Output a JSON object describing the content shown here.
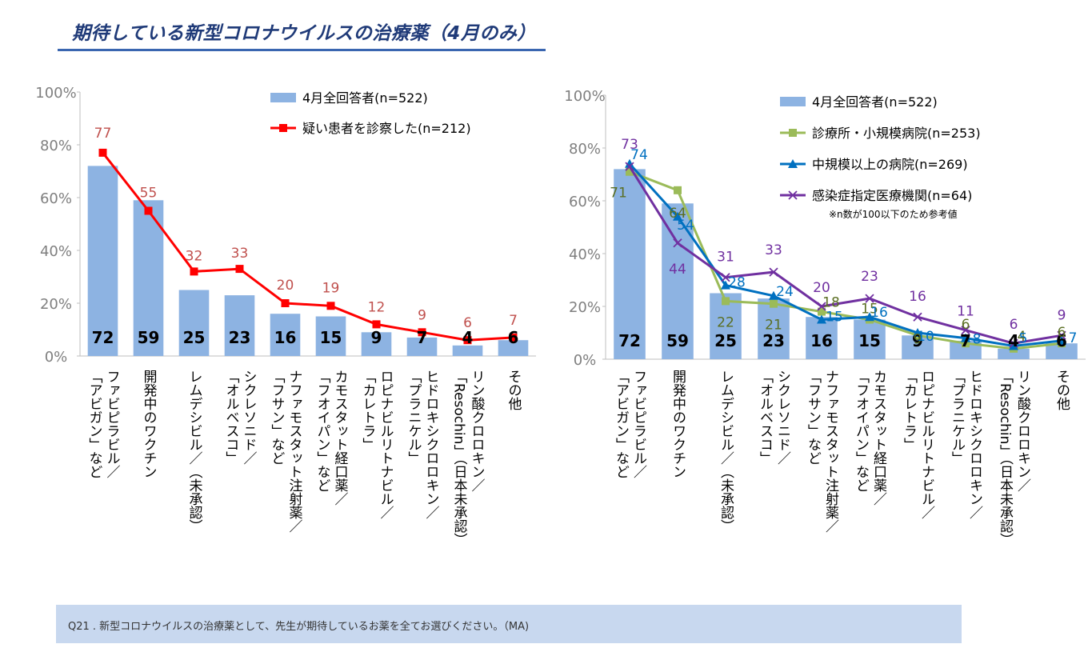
{
  "page": {
    "title": "期待している新型コロナウイルスの治療薬（4月のみ）",
    "question": "Q21 . 新型コロナウイルスの治療薬として、先生が期待しているお薬を全てお選びください。（MA)"
  },
  "chart_data": [
    {
      "type": "bar",
      "y_ticks": [
        "100%",
        "80%",
        "60%",
        "40%",
        "20%",
        "0%"
      ],
      "ylim": [
        0,
        100
      ],
      "categories": [
        [
          "ファビピラビル／",
          "「アビガン」など"
        ],
        [
          "開発中のワクチン"
        ],
        [
          "レムデシビル／（未承認）"
        ],
        [
          "シクレソニド／",
          "「オルベスコ」"
        ],
        [
          "ナファモスタット注射薬／",
          "「フサン」など"
        ],
        [
          "カモスタット経口薬／",
          "「フオイパン」など"
        ],
        [
          "ロピナビルリトナビル／",
          "「カレトラ」"
        ],
        [
          "ヒドロキシクロロキン／",
          "「プラニケル」"
        ],
        [
          "リン酸クロロキン／",
          "「Resochin」（日本未承認）"
        ],
        [
          "その他"
        ]
      ],
      "legend_position": "top-right",
      "series": [
        {
          "name": "4月全回答者(n=522)",
          "kind": "bar",
          "color": "#8db3e2",
          "values": [
            72,
            59,
            25,
            23,
            16,
            15,
            9,
            7,
            4,
            6
          ],
          "label_color": "#000000"
        },
        {
          "name": "疑い患者を診察した(n=212)",
          "kind": "line",
          "marker": "square",
          "color": "#ff0000",
          "values": [
            77,
            55,
            32,
            33,
            20,
            19,
            12,
            9,
            6,
            7
          ],
          "label_color": "#c0504d"
        }
      ]
    },
    {
      "type": "bar",
      "y_ticks": [
        "100%",
        "80%",
        "60%",
        "40%",
        "20%",
        "0%"
      ],
      "ylim": [
        0,
        100
      ],
      "categories": [
        [
          "ファビピラビル／",
          "「アビガン」など"
        ],
        [
          "開発中のワクチン"
        ],
        [
          "レムデシビル／（未承認）"
        ],
        [
          "シクレソニド／",
          "「オルベスコ」"
        ],
        [
          "ナファモスタット注射薬／",
          "「フサン」など"
        ],
        [
          "カモスタット経口薬／",
          "「フオイパン」など"
        ],
        [
          "ロピナビルリトナビル／",
          "「カレトラ」"
        ],
        [
          "ヒドロキシクロロキン／",
          "「プラニケル」"
        ],
        [
          "リン酸クロロキン／",
          "「Resochin」（日本未承認）"
        ],
        [
          "その他"
        ]
      ],
      "legend_position": "top-right",
      "note": "※n数が100以下のため参考値",
      "series": [
        {
          "name": "4月全回答者(n=522)",
          "kind": "bar",
          "color": "#8db3e2",
          "values": [
            72,
            59,
            25,
            23,
            16,
            15,
            9,
            7,
            4,
            6
          ],
          "label_color": "#000000"
        },
        {
          "name": "診療所・小規模病院(n=253)",
          "kind": "line",
          "marker": "square",
          "color": "#9bbb59",
          "values": [
            71,
            64,
            22,
            21,
            18,
            15,
            9,
            6,
            4,
            6
          ],
          "label_color": "#5a6e22"
        },
        {
          "name": "中規模以上の病院(n=269)",
          "kind": "line",
          "marker": "triangle",
          "color": "#0070c0",
          "values": [
            74,
            54,
            28,
            24,
            15,
            16,
            10,
            8,
            5,
            7
          ],
          "label_color": "#0070c0"
        },
        {
          "name": "感染症指定医療機関(n=64)",
          "kind": "line",
          "marker": "x",
          "color": "#7030a0",
          "values": [
            73,
            44,
            31,
            33,
            20,
            23,
            16,
            11,
            6,
            9
          ],
          "label_color": "#7030a0"
        }
      ]
    }
  ]
}
